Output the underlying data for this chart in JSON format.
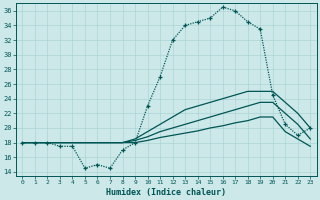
{
  "xlabel": "Humidex (Indice chaleur)",
  "bg_color": "#cce8e8",
  "grid_color": "#aad4d4",
  "line_color": "#005555",
  "xlim": [
    -0.5,
    23.5
  ],
  "ylim": [
    13.5,
    37.0
  ],
  "yticks": [
    14,
    16,
    18,
    20,
    22,
    24,
    26,
    28,
    30,
    32,
    34,
    36
  ],
  "xticks": [
    0,
    1,
    2,
    3,
    4,
    5,
    6,
    7,
    8,
    9,
    10,
    11,
    12,
    13,
    14,
    15,
    16,
    17,
    18,
    19,
    20,
    21,
    22,
    23
  ],
  "main_y": [
    18,
    18,
    18,
    17.5,
    17.5,
    14.5,
    15,
    14.5,
    17,
    18,
    23,
    27,
    32,
    34,
    34.5,
    35,
    36.5,
    36,
    34.5,
    33.5,
    24.5,
    20.5,
    19,
    20
  ],
  "line_upper_y": [
    18,
    18,
    18,
    18,
    18,
    18,
    18,
    18,
    18,
    18.5,
    19.5,
    20.5,
    21.5,
    22.5,
    23.0,
    23.5,
    24.0,
    24.5,
    25.0,
    25.0,
    25.0,
    23.5,
    22.0,
    20.0
  ],
  "line_mid_y": [
    18,
    18,
    18,
    18,
    18,
    18,
    18,
    18,
    18,
    18.3,
    18.8,
    19.5,
    20.0,
    20.5,
    21.0,
    21.5,
    22.0,
    22.5,
    23.0,
    23.5,
    23.5,
    22.0,
    20.5,
    18.5
  ],
  "line_lower_y": [
    18,
    18,
    18,
    18,
    18,
    18,
    18,
    18,
    18,
    18.0,
    18.3,
    18.7,
    19.0,
    19.3,
    19.6,
    20.0,
    20.3,
    20.7,
    21.0,
    21.5,
    21.5,
    19.5,
    18.5,
    17.5
  ]
}
